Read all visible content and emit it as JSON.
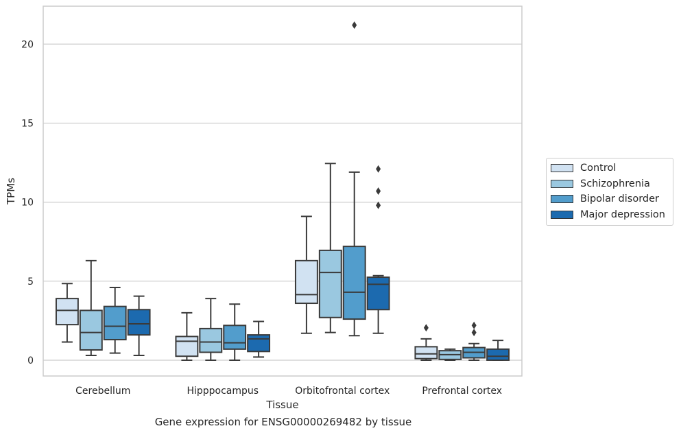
{
  "chart_data": {
    "type": "box",
    "xlabel": "Tissue",
    "ylabel": "TPMs",
    "caption": "Gene expression for ENSG00000269482 by tissue",
    "ylim": [
      -1,
      22.4
    ],
    "yticks": [
      0,
      5,
      10,
      15,
      20
    ],
    "grid": "horizontal",
    "legend_position": "right",
    "categories": [
      "Cerebellum",
      "Hipppocampus",
      "Orbitofrontal cortex",
      "Prefrontal cortex"
    ],
    "series": [
      {
        "name": "Control",
        "color": "#d1e2f2",
        "boxes": [
          {
            "whislo": 1.15,
            "q1": 2.25,
            "med": 3.15,
            "q3": 3.9,
            "whishi": 4.85,
            "fliers": []
          },
          {
            "whislo": 0.0,
            "q1": 0.25,
            "med": 1.2,
            "q3": 1.5,
            "whishi": 3.0,
            "fliers": []
          },
          {
            "whislo": 1.7,
            "q1": 3.6,
            "med": 4.15,
            "q3": 6.3,
            "whishi": 9.1,
            "fliers": []
          },
          {
            "whislo": 0.0,
            "q1": 0.1,
            "med": 0.4,
            "q3": 0.85,
            "whishi": 1.35,
            "fliers": [
              2.05
            ]
          }
        ]
      },
      {
        "name": "Schizophrenia",
        "color": "#9ac8e0",
        "boxes": [
          {
            "whislo": 0.3,
            "q1": 0.65,
            "med": 1.75,
            "q3": 3.15,
            "whishi": 6.3,
            "fliers": []
          },
          {
            "whislo": 0.0,
            "q1": 0.5,
            "med": 1.15,
            "q3": 2.0,
            "whishi": 3.9,
            "fliers": []
          },
          {
            "whislo": 1.75,
            "q1": 2.7,
            "med": 5.55,
            "q3": 6.95,
            "whishi": 12.45,
            "fliers": []
          },
          {
            "whislo": 0.0,
            "q1": 0.05,
            "med": 0.35,
            "q3": 0.6,
            "whishi": 0.7,
            "fliers": []
          }
        ]
      },
      {
        "name": "Bipolar disorder",
        "color": "#529dcc",
        "boxes": [
          {
            "whislo": 0.45,
            "q1": 1.3,
            "med": 2.15,
            "q3": 3.4,
            "whishi": 4.6,
            "fliers": []
          },
          {
            "whislo": 0.0,
            "q1": 0.7,
            "med": 1.1,
            "q3": 2.2,
            "whishi": 3.55,
            "fliers": []
          },
          {
            "whislo": 1.55,
            "q1": 2.6,
            "med": 4.3,
            "q3": 7.2,
            "whishi": 11.9,
            "fliers": [
              21.2
            ]
          },
          {
            "whislo": 0.0,
            "q1": 0.15,
            "med": 0.5,
            "q3": 0.8,
            "whishi": 1.05,
            "fliers": [
              1.75,
              2.2
            ]
          }
        ]
      },
      {
        "name": "Major depression",
        "color": "#1c6aaf",
        "boxes": [
          {
            "whislo": 0.3,
            "q1": 1.6,
            "med": 2.3,
            "q3": 3.2,
            "whishi": 4.05,
            "fliers": []
          },
          {
            "whislo": 0.2,
            "q1": 0.55,
            "med": 1.35,
            "q3": 1.6,
            "whishi": 2.45,
            "fliers": []
          },
          {
            "whislo": 1.7,
            "q1": 3.2,
            "med": 4.8,
            "q3": 5.25,
            "whishi": 5.35,
            "fliers": [
              9.8,
              10.7,
              12.1
            ]
          },
          {
            "whislo": 0.0,
            "q1": 0.0,
            "med": 0.25,
            "q3": 0.7,
            "whishi": 1.25,
            "fliers": []
          }
        ]
      }
    ]
  }
}
